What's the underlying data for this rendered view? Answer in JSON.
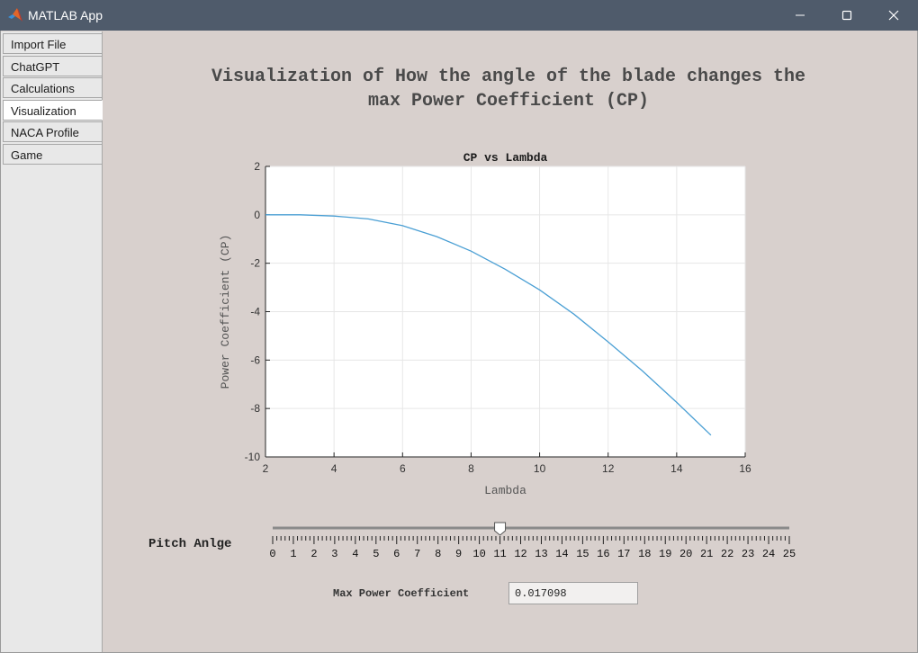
{
  "window": {
    "title": "MATLAB App",
    "logo_icon": "matlab-logo-icon",
    "controls": [
      "minimize-icon",
      "maximize-icon",
      "close-icon"
    ]
  },
  "tabs": [
    {
      "label": "Import File",
      "active": false
    },
    {
      "label": "ChatGPT",
      "active": false
    },
    {
      "label": "Calculations",
      "active": false
    },
    {
      "label": "Visualization",
      "active": true
    },
    {
      "label": "NACA Profile",
      "active": false
    },
    {
      "label": "Game",
      "active": false
    }
  ],
  "heading": {
    "line1": "Visualization of How the angle of the blade changes the",
    "line2": "max Power Coefficient (CP)"
  },
  "chart_data": {
    "type": "line",
    "title": "CP vs Lambda",
    "xlabel": "Lambda",
    "ylabel": "Power Coefficient (CP)",
    "xlim": [
      2,
      16
    ],
    "ylim": [
      -10,
      2
    ],
    "xticks": [
      "2",
      "4",
      "6",
      "8",
      "10",
      "12",
      "14",
      "16"
    ],
    "yticks": [
      "2",
      "0",
      "-2",
      "-4",
      "-6",
      "-8",
      "-10"
    ],
    "grid": true,
    "line_color": "#4a9fd4",
    "series": [
      {
        "x": [
          2,
          3,
          4,
          5,
          6,
          7,
          8,
          9,
          10,
          11,
          12,
          13,
          14,
          15
        ],
        "y": [
          0,
          0,
          -0.05,
          -0.17,
          -0.45,
          -0.9,
          -1.5,
          -2.25,
          -3.1,
          -4.1,
          -5.25,
          -6.45,
          -7.75,
          -9.1
        ]
      }
    ]
  },
  "slider": {
    "label": "Pitch Anlge",
    "min": 0,
    "max": 25,
    "value": 11,
    "tick_labels": [
      "0",
      "1",
      "2",
      "3",
      "4",
      "5",
      "6",
      "7",
      "8",
      "9",
      "10",
      "11",
      "12",
      "13",
      "14",
      "15",
      "16",
      "17",
      "18",
      "19",
      "20",
      "21",
      "22",
      "23",
      "24",
      "25"
    ]
  },
  "max_power": {
    "label": "Max Power Coefficient",
    "value": "0.017098"
  }
}
